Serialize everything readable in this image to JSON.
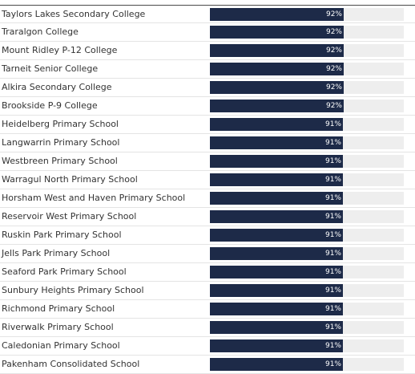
{
  "chart_data": {
    "type": "bar",
    "orientation": "horizontal",
    "categories": [
      "Taylors Lakes Secondary College",
      "Traralgon College",
      "Mount Ridley P-12 College",
      "Tarneit Senior College",
      "Alkira Secondary College",
      "Brookside P-9 College",
      "Heidelberg Primary School",
      "Langwarrin Primary School",
      "Westbreen Primary School",
      "Warragul North Primary School",
      "Horsham West and Haven Primary School",
      "Reservoir West Primary School",
      "Ruskin Park Primary School",
      "Jells Park Primary School",
      "Seaford Park Primary School",
      "Sunbury Heights Primary School",
      "Richmond Primary School",
      "Riverwalk Primary School",
      "Caledonian Primary School",
      "Pakenham Consolidated School"
    ],
    "values": [
      92,
      92,
      92,
      92,
      92,
      92,
      91,
      91,
      91,
      91,
      91,
      91,
      91,
      91,
      91,
      91,
      91,
      91,
      91,
      91
    ],
    "value_labels": [
      "92%",
      "92%",
      "92%",
      "92%",
      "92%",
      "92%",
      "91%",
      "91%",
      "91%",
      "91%",
      "91%",
      "91%",
      "91%",
      "91%",
      "91%",
      "91%",
      "91%",
      "91%",
      "91%",
      "91%"
    ],
    "xlim": [
      0,
      133
    ],
    "title": "",
    "xlabel": "",
    "ylabel": "",
    "grid": false,
    "colors": {
      "bar": "#1d2a48",
      "track": "#eeeeee",
      "label_text": "#333333",
      "value_text": "#ffffff"
    }
  }
}
